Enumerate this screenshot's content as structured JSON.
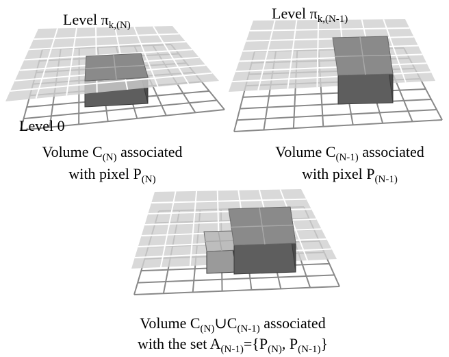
{
  "colors": {
    "grid_line": "#888888",
    "plane_fill": "#cfcfcf",
    "volume_top": "#8a8a8a",
    "volume_front": "#5e5e5e",
    "volume_side": "#4a4a4a",
    "volume_light_top": "#bdbdbd",
    "volume_light_front": "#9a9a9a",
    "text": "#000000"
  },
  "panel_left": {
    "plane_label": {
      "prefix": "Level ",
      "symbol": "π",
      "subscript": "k,(N)"
    },
    "base_label": "Level 0",
    "caption_line1": {
      "a": "Volume C",
      "sub": "(N)",
      "b": " associated"
    },
    "caption_line2": {
      "a": "with pixel P",
      "sub": "(N)"
    }
  },
  "panel_right": {
    "plane_label": {
      "prefix": "Level ",
      "symbol": "π",
      "subscript": "k,(N-1)"
    },
    "caption_line1": {
      "a": "Volume C",
      "sub": "(N-1)",
      "b": " associated"
    },
    "caption_line2": {
      "a": "with pixel P",
      "sub": "(N-1)"
    }
  },
  "panel_bottom": {
    "caption_line1": {
      "a": "Volume C",
      "sub1": "(N)",
      "op": "∪C",
      "sub2": "(N-1)",
      "b": " associated"
    },
    "caption_line2": {
      "a": "with the set A",
      "sub1": "(N-1)",
      "b": "={P",
      "sub2": "(N)",
      "c": ", P",
      "sub3": "(N-1)",
      "d": "}"
    }
  }
}
